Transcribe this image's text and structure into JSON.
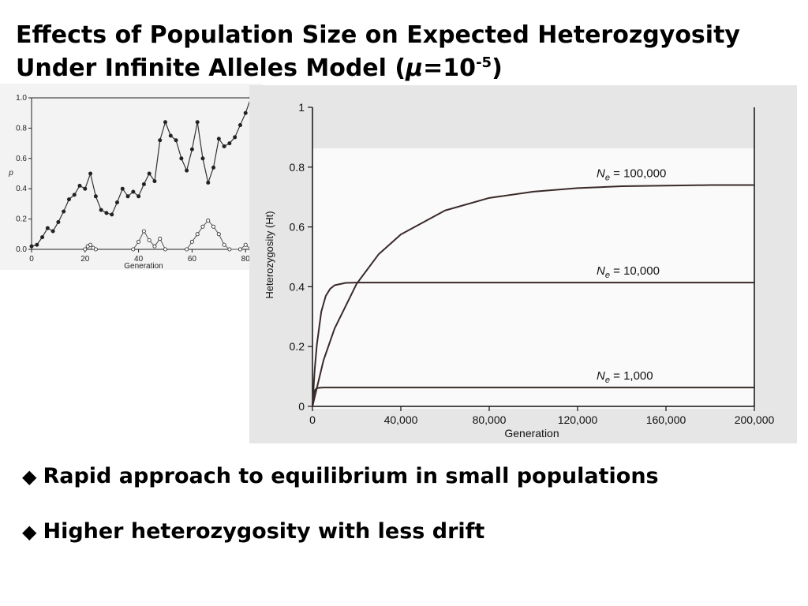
{
  "title": {
    "line1": "Effects of Population Size on Expected Heterozgyosity",
    "line2_pre": "Under Infinite Alleles Model (",
    "mu": "μ",
    "line2_mid": "=10",
    "exponent": "-5",
    "line2_post": ")"
  },
  "bullets": [
    {
      "mark": "◆",
      "text": "Rapid approach to equilibrium in small populations"
    },
    {
      "mark": "◆",
      "text": "Higher heterozygosity with less drift"
    }
  ],
  "chart_data": [
    {
      "type": "line",
      "xlabel": "Generation",
      "ylabel": "p",
      "xlim": [
        0,
        82
      ],
      "ylim": [
        0,
        1.0
      ],
      "xticks": [
        "0",
        "20",
        "40",
        "60",
        "80"
      ],
      "yticks": [
        "0.0",
        "0.2",
        "0.4",
        "0.6",
        "0.8",
        "1.0"
      ],
      "series": [
        {
          "marker": "filled-circle",
          "x": [
            0,
            2,
            4,
            6,
            8,
            10,
            12,
            14,
            16,
            18,
            20,
            22,
            24,
            26,
            28,
            30,
            32,
            34,
            36,
            38,
            40,
            42,
            44,
            46,
            48,
            50,
            52,
            54,
            56,
            58,
            60,
            62,
            64,
            66,
            68,
            70,
            72,
            74,
            76,
            78,
            80,
            82
          ],
          "y": [
            0.02,
            0.03,
            0.08,
            0.14,
            0.12,
            0.18,
            0.25,
            0.33,
            0.36,
            0.42,
            0.4,
            0.5,
            0.35,
            0.26,
            0.24,
            0.23,
            0.31,
            0.4,
            0.35,
            0.38,
            0.35,
            0.43,
            0.5,
            0.45,
            0.72,
            0.84,
            0.75,
            0.72,
            0.6,
            0.52,
            0.66,
            0.84,
            0.6,
            0.44,
            0.54,
            0.73,
            0.68,
            0.7,
            0.74,
            0.82,
            0.9,
            1.0
          ]
        },
        {
          "marker": "open-circle",
          "x": [
            20,
            21,
            22,
            23,
            24,
            38,
            40,
            42,
            44,
            46,
            48,
            50,
            58,
            60,
            62,
            64,
            66,
            68,
            70,
            72,
            74,
            78,
            80,
            82
          ],
          "y": [
            0.0,
            0.02,
            0.03,
            0.01,
            0.0,
            0.0,
            0.05,
            0.12,
            0.06,
            0.02,
            0.07,
            0.0,
            0.0,
            0.05,
            0.1,
            0.15,
            0.19,
            0.15,
            0.1,
            0.03,
            0.0,
            0.0,
            0.03,
            0.0
          ]
        }
      ]
    },
    {
      "type": "line",
      "xlabel": "Generation",
      "ylabel": "Heterozygosity (Ht)",
      "xlim": [
        0,
        200000
      ],
      "ylim": [
        0,
        1.0
      ],
      "xticks": [
        "0",
        "40,000",
        "80,000",
        "120,000",
        "160,000",
        "200,000"
      ],
      "yticks": [
        "0",
        "0.2",
        "0.4",
        "0.6",
        "0.8",
        "1"
      ],
      "series": [
        {
          "name": "Ne = 100,000",
          "x": [
            0,
            5000,
            10000,
            20000,
            30000,
            40000,
            60000,
            80000,
            100000,
            120000,
            140000,
            160000,
            180000,
            200000
          ],
          "y": [
            0,
            0.154,
            0.26,
            0.41,
            0.509,
            0.575,
            0.655,
            0.697,
            0.718,
            0.73,
            0.736,
            0.738,
            0.74,
            0.74
          ]
        },
        {
          "name": "Ne = 10,000",
          "x": [
            0,
            1000,
            2000,
            4000,
            6000,
            8000,
            10000,
            15000,
            20000,
            30000,
            40000,
            60000,
            100000,
            200000
          ],
          "y": [
            0,
            0.122,
            0.207,
            0.317,
            0.369,
            0.393,
            0.405,
            0.413,
            0.414,
            0.414,
            0.414,
            0.414,
            0.414,
            0.414
          ]
        },
        {
          "name": "Ne = 1,000",
          "x": [
            0,
            200,
            400,
            800,
            1200,
            2000,
            3000,
            5000,
            10000,
            20000,
            200000
          ],
          "y": [
            0,
            0.017,
            0.03,
            0.047,
            0.055,
            0.061,
            0.062,
            0.063,
            0.063,
            0.063,
            0.063
          ]
        }
      ],
      "labels": [
        {
          "pre": "N",
          "sub": "e",
          "post": " = 100,000"
        },
        {
          "pre": "N",
          "sub": "e",
          "post": " = 10,000"
        },
        {
          "pre": "N",
          "sub": "e",
          "post": " = 1,000"
        }
      ]
    }
  ]
}
